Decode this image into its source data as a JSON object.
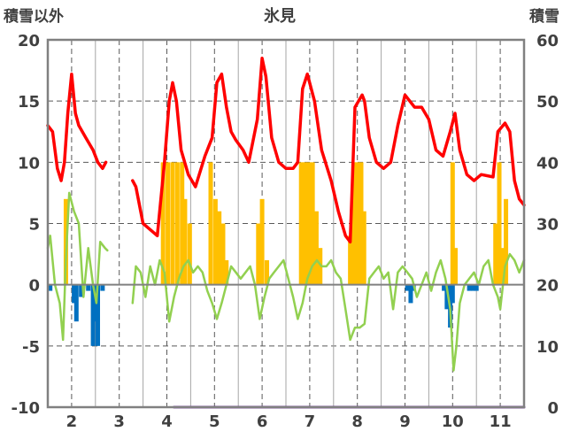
{
  "chart_data": {
    "type": "line",
    "title": "氷見",
    "left_axis": {
      "label": "積雪以外",
      "ylim": [
        -10,
        20
      ],
      "ticks": [
        -10,
        -5,
        0,
        5,
        10,
        15,
        20
      ],
      "tick_labels": [
        "-10",
        "-5",
        "0",
        "5",
        "10",
        "15",
        "20"
      ]
    },
    "right_axis": {
      "label": "積雪",
      "ylim": [
        0,
        60
      ],
      "ticks": [
        0,
        10,
        20,
        30,
        40,
        50,
        60
      ],
      "tick_labels": [
        "0",
        "10",
        "20",
        "30",
        "40",
        "50",
        "60"
      ]
    },
    "x_axis": {
      "xlim": [
        1.5,
        11.5
      ],
      "ticks": [
        2,
        3,
        4,
        5,
        6,
        7,
        8,
        9,
        10,
        11
      ],
      "tick_labels": [
        "2",
        "3",
        "4",
        "5",
        "6",
        "7",
        "8",
        "9",
        "10",
        "11"
      ]
    },
    "grid": true,
    "colors": {
      "red_line": "#ff0000",
      "green_line": "#92d050",
      "orange_bars": "#ffc000",
      "blue_bars": "#0070c0",
      "purple_line": "#7030a0",
      "axis": "#808080",
      "grid": "#595959"
    },
    "series": [
      {
        "kind": "line",
        "color_key": "red_line",
        "axis": "left",
        "segments": [
          [
            [
              1.5,
              13.0
            ],
            [
              1.6,
              12.5
            ],
            [
              1.7,
              9.5
            ],
            [
              1.78,
              8.5
            ],
            [
              1.85,
              10
            ],
            [
              1.92,
              14
            ],
            [
              2.0,
              17.2
            ],
            [
              2.08,
              14
            ],
            [
              2.15,
              13.0
            ],
            [
              2.3,
              12.0
            ],
            [
              2.45,
              11.0
            ],
            [
              2.55,
              10.0
            ],
            [
              2.65,
              9.5
            ],
            [
              2.72,
              10
            ]
          ],
          [
            [
              3.28,
              8.5
            ],
            [
              3.35,
              8
            ],
            [
              3.5,
              5
            ],
            [
              3.65,
              4.5
            ],
            [
              3.8,
              4
            ],
            [
              3.95,
              10
            ],
            [
              4.05,
              15
            ],
            [
              4.12,
              16.5
            ],
            [
              4.2,
              15
            ],
            [
              4.3,
              11
            ],
            [
              4.45,
              9
            ],
            [
              4.6,
              8
            ],
            [
              4.8,
              10.5
            ],
            [
              4.95,
              12
            ],
            [
              5.05,
              16.5
            ],
            [
              5.15,
              17.2
            ],
            [
              5.25,
              14.5
            ],
            [
              5.35,
              12.5
            ],
            [
              5.45,
              11.8
            ],
            [
              5.6,
              11
            ],
            [
              5.72,
              10
            ],
            [
              5.9,
              13.5
            ],
            [
              6.0,
              18.5
            ],
            [
              6.08,
              17
            ],
            [
              6.2,
              12
            ],
            [
              6.35,
              10
            ],
            [
              6.5,
              9.5
            ],
            [
              6.65,
              9.5
            ],
            [
              6.75,
              10
            ],
            [
              6.85,
              16
            ],
            [
              6.95,
              17.2
            ],
            [
              7.1,
              15
            ],
            [
              7.25,
              11
            ],
            [
              7.45,
              8.5
            ],
            [
              7.6,
              6
            ],
            [
              7.75,
              4
            ],
            [
              7.85,
              3.5
            ],
            [
              7.95,
              14.5
            ],
            [
              8.1,
              15.5
            ],
            [
              8.15,
              15
            ],
            [
              8.25,
              12
            ],
            [
              8.4,
              10
            ],
            [
              8.55,
              9.5
            ],
            [
              8.7,
              10
            ],
            [
              8.85,
              13
            ],
            [
              9.0,
              15.5
            ],
            [
              9.2,
              14.5
            ],
            [
              9.35,
              14.5
            ],
            [
              9.5,
              13.5
            ],
            [
              9.65,
              11
            ],
            [
              9.8,
              10.5
            ],
            [
              9.95,
              12.5
            ],
            [
              10.05,
              14
            ],
            [
              10.15,
              11
            ],
            [
              10.3,
              9
            ],
            [
              10.45,
              8.5
            ],
            [
              10.6,
              9
            ],
            [
              10.85,
              8.8
            ],
            [
              10.95,
              12.5
            ],
            [
              11.1,
              13.2
            ],
            [
              11.2,
              12.5
            ],
            [
              11.3,
              8.5
            ],
            [
              11.4,
              7
            ],
            [
              11.5,
              6.5
            ]
          ]
        ]
      },
      {
        "kind": "line",
        "color_key": "green_line",
        "axis": "left",
        "segments": [
          [
            [
              1.5,
              3
            ],
            [
              1.55,
              4
            ],
            [
              1.65,
              0
            ],
            [
              1.75,
              -1.5
            ],
            [
              1.82,
              -4.5
            ],
            [
              1.88,
              2
            ],
            [
              1.95,
              7.5
            ],
            [
              2.05,
              6
            ],
            [
              2.15,
              5
            ],
            [
              2.25,
              -1
            ],
            [
              2.35,
              3
            ],
            [
              2.45,
              0
            ],
            [
              2.52,
              -1.5
            ],
            [
              2.6,
              3.5
            ],
            [
              2.7,
              3
            ],
            [
              2.75,
              2.8
            ]
          ],
          [
            [
              3.28,
              -1.5
            ],
            [
              3.35,
              1.5
            ],
            [
              3.45,
              1
            ],
            [
              3.55,
              -1
            ],
            [
              3.65,
              1.5
            ],
            [
              3.75,
              0
            ],
            [
              3.85,
              2
            ],
            [
              3.95,
              1
            ],
            [
              4.05,
              -3
            ],
            [
              4.15,
              -1
            ],
            [
              4.25,
              0.5
            ],
            [
              4.35,
              1.5
            ],
            [
              4.45,
              2
            ],
            [
              4.55,
              1
            ],
            [
              4.65,
              1.5
            ],
            [
              4.75,
              1
            ],
            [
              4.85,
              -0.5
            ],
            [
              4.95,
              -1.5
            ],
            [
              5.05,
              -2.8
            ],
            [
              5.15,
              -1.5
            ],
            [
              5.25,
              0
            ],
            [
              5.35,
              1.5
            ],
            [
              5.45,
              1
            ],
            [
              5.55,
              0.5
            ],
            [
              5.65,
              1
            ],
            [
              5.75,
              1.5
            ],
            [
              5.85,
              0
            ],
            [
              5.95,
              -2.8
            ],
            [
              6.05,
              -1
            ],
            [
              6.15,
              0.5
            ],
            [
              6.25,
              1
            ],
            [
              6.35,
              1.5
            ],
            [
              6.45,
              2
            ],
            [
              6.55,
              0.5
            ],
            [
              6.65,
              -1
            ],
            [
              6.75,
              -2.8
            ],
            [
              6.85,
              -1.5
            ],
            [
              6.95,
              0.5
            ],
            [
              7.05,
              1.5
            ],
            [
              7.15,
              2
            ],
            [
              7.25,
              1.5
            ],
            [
              7.35,
              1.5
            ],
            [
              7.45,
              2
            ],
            [
              7.55,
              1
            ],
            [
              7.65,
              0.5
            ],
            [
              7.75,
              -2
            ],
            [
              7.85,
              -4.5
            ],
            [
              7.95,
              -3.5
            ],
            [
              8.05,
              -3.5
            ],
            [
              8.15,
              -3.2
            ],
            [
              8.25,
              0.5
            ],
            [
              8.35,
              1
            ],
            [
              8.45,
              1.5
            ],
            [
              8.55,
              0.5
            ],
            [
              8.65,
              1
            ],
            [
              8.75,
              -2
            ],
            [
              8.85,
              1
            ],
            [
              8.95,
              1.5
            ],
            [
              9.05,
              1
            ],
            [
              9.15,
              0.5
            ],
            [
              9.25,
              -1
            ],
            [
              9.35,
              0
            ],
            [
              9.45,
              1
            ],
            [
              9.55,
              -0.5
            ],
            [
              9.65,
              1
            ],
            [
              9.75,
              2
            ],
            [
              9.85,
              0.5
            ],
            [
              9.95,
              -2
            ],
            [
              10.02,
              -7
            ],
            [
              10.08,
              -5
            ],
            [
              10.15,
              -1.5
            ],
            [
              10.25,
              0
            ],
            [
              10.35,
              0.5
            ],
            [
              10.45,
              1
            ],
            [
              10.55,
              0
            ],
            [
              10.65,
              1.5
            ],
            [
              10.75,
              2
            ],
            [
              10.85,
              0
            ],
            [
              10.95,
              -1
            ],
            [
              11.0,
              -2
            ],
            [
              11.1,
              1.5
            ],
            [
              11.2,
              2.5
            ],
            [
              11.3,
              2
            ],
            [
              11.4,
              1
            ],
            [
              11.5,
              2
            ]
          ]
        ]
      },
      {
        "kind": "bar",
        "color_key": "orange_bars",
        "axis": "left",
        "points": [
          [
            1.88,
            7
          ],
          [
            3.92,
            10
          ],
          [
            4.02,
            10
          ],
          [
            4.12,
            10
          ],
          [
            4.22,
            10
          ],
          [
            4.32,
            10
          ],
          [
            4.38,
            7
          ],
          [
            4.48,
            5
          ],
          [
            4.92,
            10
          ],
          [
            5.02,
            7
          ],
          [
            5.1,
            6
          ],
          [
            5.18,
            5
          ],
          [
            5.25,
            2
          ],
          [
            5.92,
            5
          ],
          [
            6.0,
            7
          ],
          [
            6.1,
            2
          ],
          [
            6.82,
            10
          ],
          [
            6.9,
            10
          ],
          [
            6.98,
            10
          ],
          [
            7.06,
            10
          ],
          [
            7.14,
            6
          ],
          [
            7.22,
            3
          ],
          [
            7.85,
            4
          ],
          [
            7.92,
            10
          ],
          [
            8.0,
            10
          ],
          [
            8.08,
            10
          ],
          [
            8.14,
            6
          ],
          [
            10.0,
            10
          ],
          [
            10.06,
            3
          ],
          [
            10.9,
            5
          ],
          [
            10.98,
            10
          ],
          [
            11.05,
            3
          ],
          [
            11.12,
            7
          ]
        ]
      },
      {
        "kind": "bar",
        "color_key": "blue_bars",
        "axis": "left",
        "points": [
          [
            1.55,
            -0.5
          ],
          [
            2.05,
            -1.5
          ],
          [
            2.1,
            -3
          ],
          [
            2.2,
            -1
          ],
          [
            2.35,
            -0.5
          ],
          [
            2.45,
            -5
          ],
          [
            2.5,
            -3
          ],
          [
            2.55,
            -5
          ],
          [
            2.65,
            -0.5
          ],
          [
            9.05,
            -0.5
          ],
          [
            9.12,
            -1.5
          ],
          [
            9.18,
            -0.5
          ],
          [
            9.82,
            -0.5
          ],
          [
            9.88,
            -2
          ],
          [
            9.95,
            -3.5
          ],
          [
            10.0,
            -1.5
          ],
          [
            10.35,
            -0.5
          ],
          [
            10.43,
            -0.5
          ],
          [
            10.5,
            -0.5
          ]
        ]
      },
      {
        "kind": "line",
        "color_key": "purple_line",
        "axis": "right",
        "segments": [
          [
            [
              4.15,
              0
            ],
            [
              11.5,
              0
            ]
          ]
        ]
      }
    ]
  }
}
